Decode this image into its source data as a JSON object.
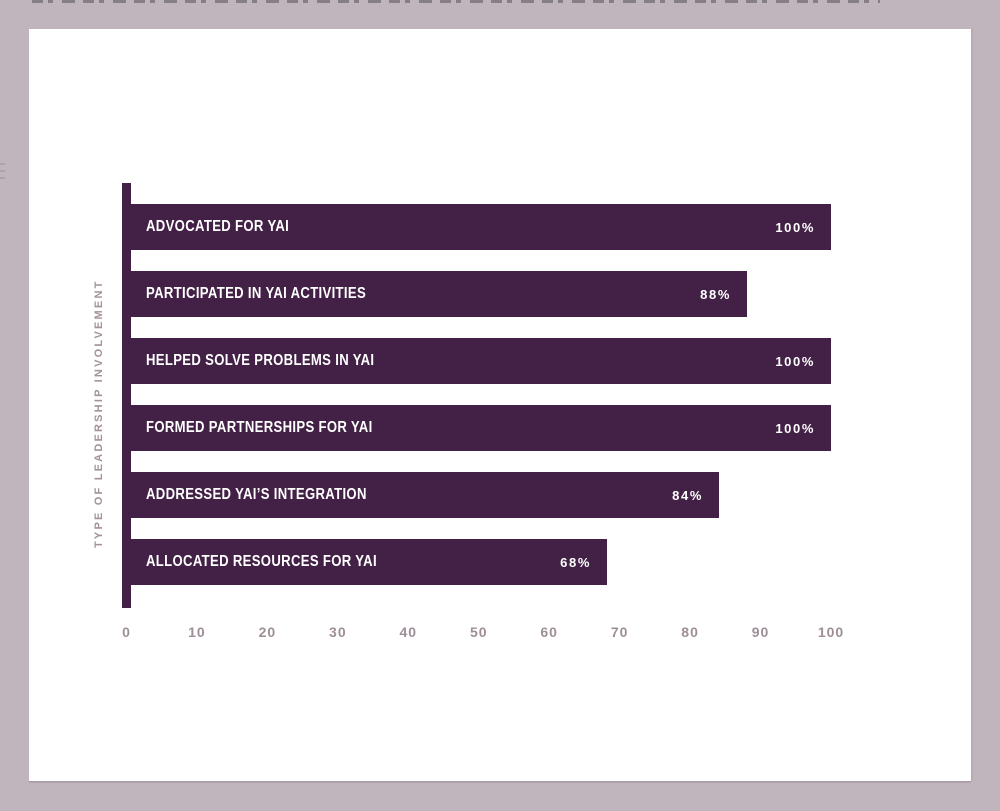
{
  "chart_data": {
    "type": "bar",
    "orientation": "horizontal",
    "title": "",
    "xlabel": "",
    "ylabel": "TYPE OF LEADERSHIP INVOLVEMENT",
    "categories": [
      "ADVOCATED FOR YAI",
      "PARTICIPATED IN YAI ACTIVITIES",
      "HELPED SOLVE PROBLEMS IN YAI",
      "FORMED PARTNERSHIPS FOR YAI",
      "ADDRESSED YAI’S INTEGRATION",
      "ALLOCATED RESOURCES FOR YAI"
    ],
    "values": [
      100,
      88,
      100,
      100,
      84,
      68
    ],
    "value_labels": [
      "100%",
      "88%",
      "100%",
      "100%",
      "84%",
      "68%"
    ],
    "xlim": [
      0,
      100
    ],
    "x_ticks": [
      0,
      10,
      20,
      30,
      40,
      50,
      60,
      70,
      80,
      90,
      100
    ],
    "grid": false,
    "legend": false,
    "value_labels_position": "inside-right",
    "colors": {
      "bar": "#432146",
      "bar_text": "#ffffff",
      "axis_line": "#432146",
      "tick_text": "#9e8e98",
      "panel_background": "#ffffff",
      "frame_background": "#c0b5bc"
    }
  }
}
